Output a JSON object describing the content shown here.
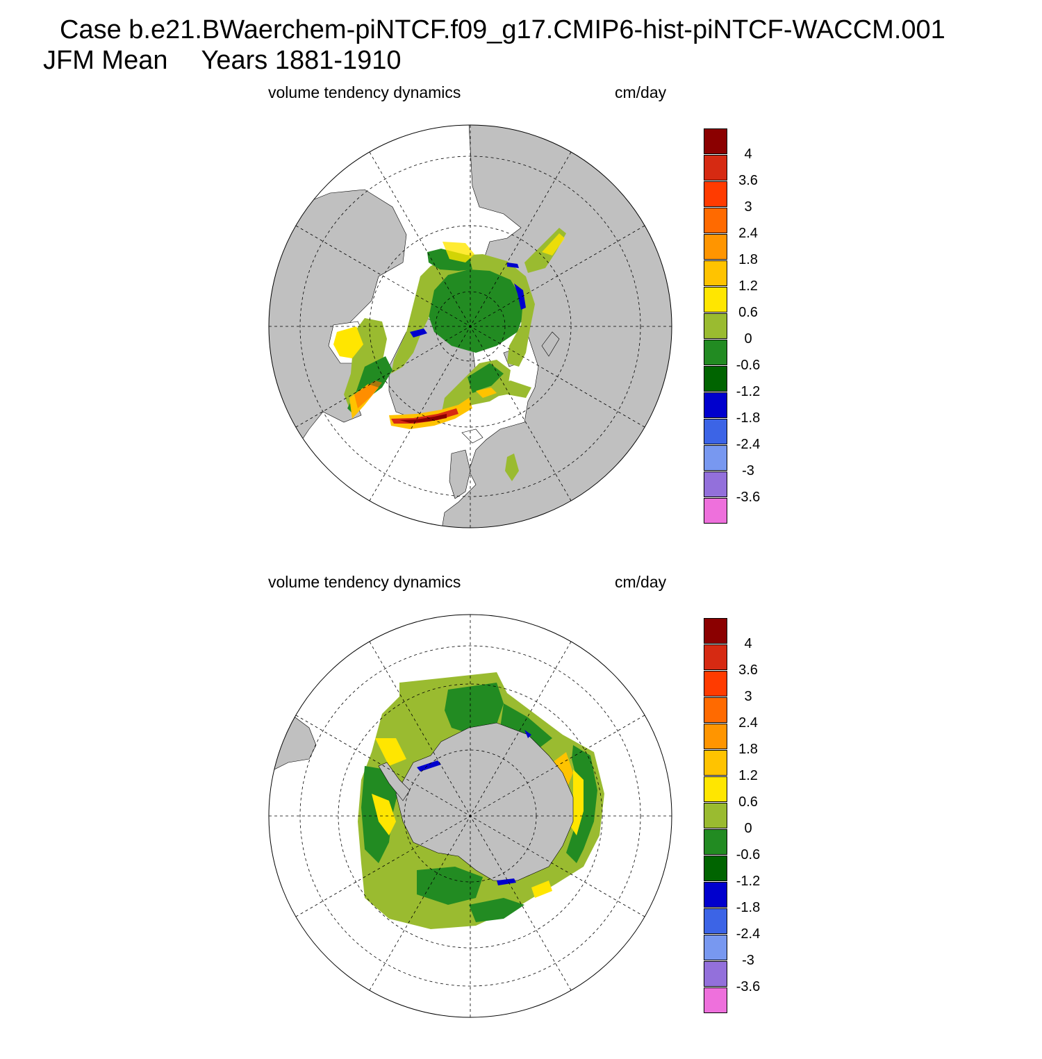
{
  "title": {
    "case": "Case b.e21.BWaerchem-piNTCF.f09_g17.CMIP6-hist-piNTCF-WACCM.001",
    "season": "JFM Mean",
    "years": "Years 1881-1910"
  },
  "panels": [
    {
      "id": "nh",
      "hemisphere": "north",
      "field_label": "volume tendency dynamics",
      "units_label": "cm/day"
    },
    {
      "id": "sh",
      "hemisphere": "south",
      "field_label": "volume tendency dynamics",
      "units_label": "cm/day"
    }
  ],
  "colorbar": {
    "tick_labels": [
      "4",
      "3.6",
      "3",
      "2.4",
      "1.8",
      "1.2",
      "0.6",
      "0",
      "-0.6",
      "-1.2",
      "-1.8",
      "-2.4",
      "-3",
      "-3.6"
    ],
    "colors": [
      "#8b0000",
      "#d62a12",
      "#ff3b00",
      "#ff6a00",
      "#ff9500",
      "#ffc300",
      "#ffe600",
      "#9abb30",
      "#228b22",
      "#006400",
      "#0000cd",
      "#3c64e6",
      "#7898f0",
      "#9370db",
      "#ee70dc"
    ]
  },
  "map_style": {
    "land_color": "#c0c0c0",
    "ocean_color": "#ffffff",
    "grid_color": "#000000"
  }
}
